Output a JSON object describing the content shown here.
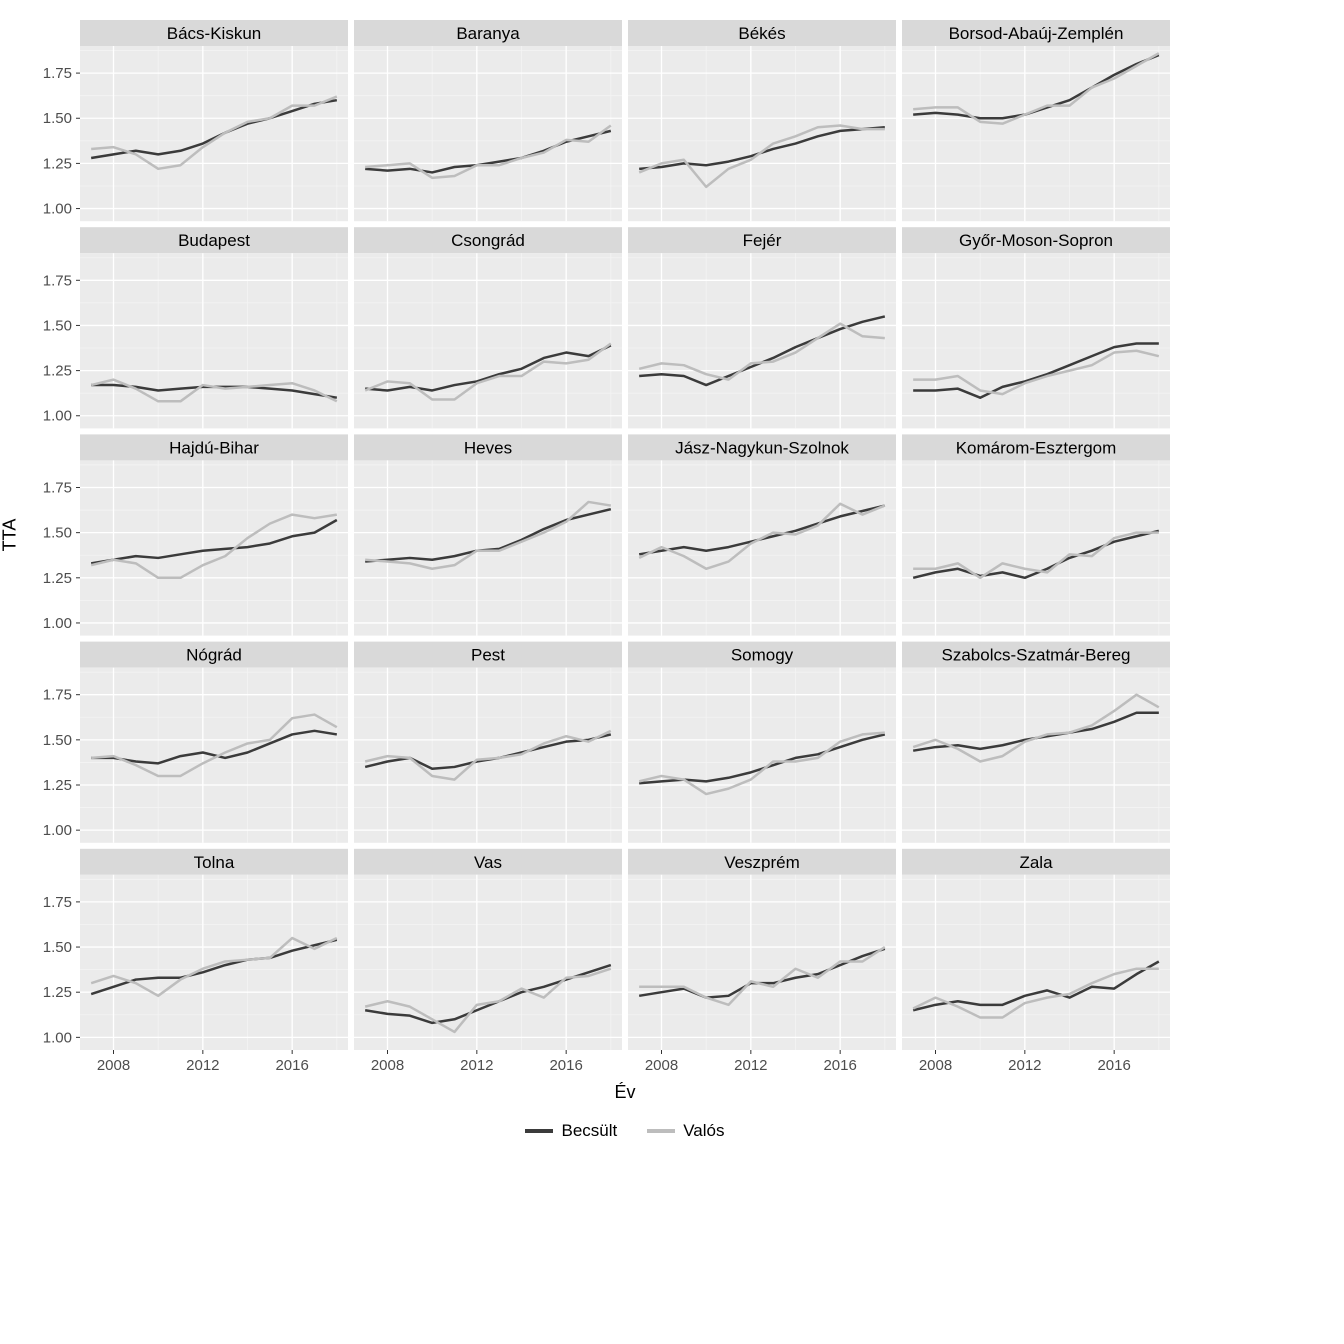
{
  "chart": {
    "type": "line-small-multiples",
    "y_axis_title": "TTA",
    "x_axis_title": "Év",
    "facet_cols": 4,
    "facet_rows": 5,
    "background_color": "#ffffff",
    "panel_background": "#ebebeb",
    "strip_background": "#d9d9d9",
    "gridline_major_color": "#ffffff",
    "gridline_minor_color": "#f4f4f4",
    "strip_text_color": "#000000",
    "axis_text_color": "#4d4d4d",
    "line_width": 2.5,
    "title_fontsize": 18,
    "strip_fontsize": 17,
    "axis_tick_fontsize": 15,
    "legend_fontsize": 17,
    "legend_title": "",
    "x": {
      "min": 2006.5,
      "max": 2018.5,
      "ticks": [
        2008,
        2012,
        2016
      ]
    },
    "y": {
      "min": 0.93,
      "max": 1.9,
      "ticks": [
        1.0,
        1.25,
        1.5,
        1.75
      ]
    },
    "series_meta": [
      {
        "key": "becsult",
        "label": "Becsült",
        "color": "#3b3b3b"
      },
      {
        "key": "valos",
        "label": "Valós",
        "color": "#bdbdbd"
      }
    ],
    "years": [
      2007,
      2008,
      2009,
      2010,
      2011,
      2012,
      2013,
      2014,
      2015,
      2016,
      2017,
      2018
    ],
    "panels": [
      {
        "title": "Bács-Kiskun",
        "becsult": [
          1.28,
          1.3,
          1.32,
          1.3,
          1.32,
          1.36,
          1.42,
          1.47,
          1.5,
          1.54,
          1.58,
          1.6
        ],
        "valos": [
          1.33,
          1.34,
          1.3,
          1.22,
          1.24,
          1.34,
          1.42,
          1.48,
          1.5,
          1.57,
          1.57,
          1.62
        ]
      },
      {
        "title": "Baranya",
        "becsult": [
          1.22,
          1.21,
          1.22,
          1.2,
          1.23,
          1.24,
          1.26,
          1.28,
          1.32,
          1.37,
          1.4,
          1.43
        ],
        "valos": [
          1.23,
          1.24,
          1.25,
          1.17,
          1.18,
          1.24,
          1.24,
          1.28,
          1.31,
          1.38,
          1.37,
          1.46
        ]
      },
      {
        "title": "Békés",
        "becsult": [
          1.22,
          1.23,
          1.25,
          1.24,
          1.26,
          1.29,
          1.33,
          1.36,
          1.4,
          1.43,
          1.44,
          1.45
        ],
        "valos": [
          1.2,
          1.25,
          1.27,
          1.12,
          1.22,
          1.27,
          1.36,
          1.4,
          1.45,
          1.46,
          1.44,
          1.44
        ]
      },
      {
        "title": "Borsod-Abaúj-Zemplén",
        "becsult": [
          1.52,
          1.53,
          1.52,
          1.5,
          1.5,
          1.52,
          1.56,
          1.6,
          1.67,
          1.74,
          1.8,
          1.85
        ],
        "valos": [
          1.55,
          1.56,
          1.56,
          1.48,
          1.47,
          1.52,
          1.57,
          1.57,
          1.67,
          1.72,
          1.79,
          1.86
        ]
      },
      {
        "title": "Budapest",
        "becsult": [
          1.17,
          1.17,
          1.16,
          1.14,
          1.15,
          1.16,
          1.16,
          1.16,
          1.15,
          1.14,
          1.12,
          1.1
        ],
        "valos": [
          1.17,
          1.2,
          1.15,
          1.08,
          1.08,
          1.17,
          1.15,
          1.16,
          1.17,
          1.18,
          1.14,
          1.08
        ]
      },
      {
        "title": "Csongrád",
        "becsult": [
          1.15,
          1.14,
          1.16,
          1.14,
          1.17,
          1.19,
          1.23,
          1.26,
          1.32,
          1.35,
          1.33,
          1.39
        ],
        "valos": [
          1.14,
          1.19,
          1.18,
          1.09,
          1.09,
          1.18,
          1.22,
          1.22,
          1.3,
          1.29,
          1.31,
          1.4
        ]
      },
      {
        "title": "Fejér",
        "becsult": [
          1.22,
          1.23,
          1.22,
          1.17,
          1.22,
          1.27,
          1.32,
          1.38,
          1.43,
          1.48,
          1.52,
          1.55
        ],
        "valos": [
          1.26,
          1.29,
          1.28,
          1.23,
          1.2,
          1.29,
          1.3,
          1.35,
          1.43,
          1.51,
          1.44,
          1.43
        ]
      },
      {
        "title": "Győr-Moson-Sopron",
        "becsult": [
          1.14,
          1.14,
          1.15,
          1.1,
          1.16,
          1.19,
          1.23,
          1.28,
          1.33,
          1.38,
          1.4,
          1.4
        ],
        "valos": [
          1.2,
          1.2,
          1.22,
          1.14,
          1.12,
          1.18,
          1.22,
          1.25,
          1.28,
          1.35,
          1.36,
          1.33
        ]
      },
      {
        "title": "Hajdú-Bihar",
        "becsult": [
          1.33,
          1.35,
          1.37,
          1.36,
          1.38,
          1.4,
          1.41,
          1.42,
          1.44,
          1.48,
          1.5,
          1.57
        ],
        "valos": [
          1.32,
          1.35,
          1.33,
          1.25,
          1.25,
          1.32,
          1.37,
          1.47,
          1.55,
          1.6,
          1.58,
          1.6
        ]
      },
      {
        "title": "Heves",
        "becsult": [
          1.34,
          1.35,
          1.36,
          1.35,
          1.37,
          1.4,
          1.41,
          1.46,
          1.52,
          1.57,
          1.6,
          1.63
        ],
        "valos": [
          1.35,
          1.34,
          1.33,
          1.3,
          1.32,
          1.4,
          1.4,
          1.45,
          1.5,
          1.56,
          1.67,
          1.65
        ]
      },
      {
        "title": "Jász-Nagykun-Szolnok",
        "becsult": [
          1.38,
          1.4,
          1.42,
          1.4,
          1.42,
          1.45,
          1.48,
          1.51,
          1.55,
          1.59,
          1.62,
          1.65
        ],
        "valos": [
          1.36,
          1.42,
          1.37,
          1.3,
          1.34,
          1.44,
          1.5,
          1.49,
          1.54,
          1.66,
          1.6,
          1.65
        ]
      },
      {
        "title": "Komárom-Esztergom",
        "becsult": [
          1.25,
          1.28,
          1.3,
          1.26,
          1.28,
          1.25,
          1.3,
          1.36,
          1.4,
          1.45,
          1.48,
          1.51
        ],
        "valos": [
          1.3,
          1.3,
          1.33,
          1.25,
          1.33,
          1.3,
          1.28,
          1.38,
          1.37,
          1.47,
          1.5,
          1.5
        ]
      },
      {
        "title": "Nógrád",
        "becsult": [
          1.4,
          1.4,
          1.38,
          1.37,
          1.41,
          1.43,
          1.4,
          1.43,
          1.48,
          1.53,
          1.55,
          1.53
        ],
        "valos": [
          1.4,
          1.41,
          1.36,
          1.3,
          1.3,
          1.37,
          1.43,
          1.48,
          1.5,
          1.62,
          1.64,
          1.57
        ]
      },
      {
        "title": "Pest",
        "becsult": [
          1.35,
          1.38,
          1.4,
          1.34,
          1.35,
          1.38,
          1.4,
          1.43,
          1.46,
          1.49,
          1.5,
          1.53
        ],
        "valos": [
          1.38,
          1.41,
          1.4,
          1.3,
          1.28,
          1.39,
          1.4,
          1.42,
          1.48,
          1.52,
          1.49,
          1.55
        ]
      },
      {
        "title": "Somogy",
        "becsult": [
          1.26,
          1.27,
          1.28,
          1.27,
          1.29,
          1.32,
          1.36,
          1.4,
          1.42,
          1.46,
          1.5,
          1.53
        ],
        "valos": [
          1.27,
          1.3,
          1.28,
          1.2,
          1.23,
          1.28,
          1.38,
          1.38,
          1.4,
          1.49,
          1.53,
          1.54
        ]
      },
      {
        "title": "Szabolcs-Szatmár-Bereg",
        "becsult": [
          1.44,
          1.46,
          1.47,
          1.45,
          1.47,
          1.5,
          1.52,
          1.54,
          1.56,
          1.6,
          1.65,
          1.65
        ],
        "valos": [
          1.46,
          1.5,
          1.45,
          1.38,
          1.41,
          1.49,
          1.53,
          1.54,
          1.58,
          1.66,
          1.75,
          1.68
        ]
      },
      {
        "title": "Tolna",
        "becsult": [
          1.24,
          1.28,
          1.32,
          1.33,
          1.33,
          1.36,
          1.4,
          1.43,
          1.44,
          1.48,
          1.51,
          1.54
        ],
        "valos": [
          1.3,
          1.34,
          1.3,
          1.23,
          1.32,
          1.38,
          1.42,
          1.43,
          1.44,
          1.55,
          1.49,
          1.55
        ]
      },
      {
        "title": "Vas",
        "becsult": [
          1.15,
          1.13,
          1.12,
          1.08,
          1.1,
          1.15,
          1.2,
          1.25,
          1.28,
          1.32,
          1.36,
          1.4
        ],
        "valos": [
          1.17,
          1.2,
          1.17,
          1.1,
          1.03,
          1.18,
          1.2,
          1.27,
          1.22,
          1.33,
          1.34,
          1.38
        ]
      },
      {
        "title": "Veszprém",
        "becsult": [
          1.23,
          1.25,
          1.27,
          1.22,
          1.23,
          1.3,
          1.3,
          1.33,
          1.35,
          1.4,
          1.45,
          1.49
        ],
        "valos": [
          1.28,
          1.28,
          1.28,
          1.22,
          1.18,
          1.31,
          1.28,
          1.38,
          1.33,
          1.42,
          1.42,
          1.5
        ]
      },
      {
        "title": "Zala",
        "becsult": [
          1.15,
          1.18,
          1.2,
          1.18,
          1.18,
          1.23,
          1.26,
          1.22,
          1.28,
          1.27,
          1.35,
          1.42
        ],
        "valos": [
          1.16,
          1.22,
          1.17,
          1.11,
          1.11,
          1.19,
          1.22,
          1.24,
          1.3,
          1.35,
          1.38,
          1.38
        ]
      }
    ]
  }
}
